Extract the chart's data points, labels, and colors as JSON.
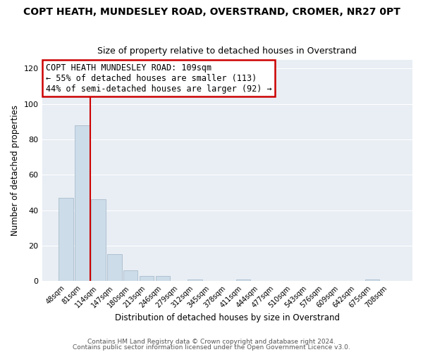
{
  "title": "COPT HEATH, MUNDESLEY ROAD, OVERSTRAND, CROMER, NR27 0PT",
  "subtitle": "Size of property relative to detached houses in Overstrand",
  "xlabel": "Distribution of detached houses by size in Overstrand",
  "ylabel": "Number of detached properties",
  "bin_labels": [
    "48sqm",
    "81sqm",
    "114sqm",
    "147sqm",
    "180sqm",
    "213sqm",
    "246sqm",
    "279sqm",
    "312sqm",
    "345sqm",
    "378sqm",
    "411sqm",
    "444sqm",
    "477sqm",
    "510sqm",
    "543sqm",
    "576sqm",
    "609sqm",
    "642sqm",
    "675sqm",
    "708sqm"
  ],
  "bar_values": [
    47,
    88,
    46,
    15,
    6,
    3,
    3,
    0,
    1,
    0,
    0,
    1,
    0,
    0,
    0,
    0,
    0,
    0,
    0,
    1,
    0
  ],
  "bar_color": "#ccdce8",
  "bar_edgecolor": "#aabccc",
  "ylim": [
    0,
    125
  ],
  "yticks": [
    0,
    20,
    40,
    60,
    80,
    100,
    120
  ],
  "vline_color": "#cc0000",
  "annotation_title": "COPT HEATH MUNDESLEY ROAD: 109sqm",
  "annotation_line1": "← 55% of detached houses are smaller (113)",
  "annotation_line2": "44% of semi-detached houses are larger (92) →",
  "annotation_box_color": "#cc0000",
  "footer1": "Contains HM Land Registry data © Crown copyright and database right 2024.",
  "footer2": "Contains public sector information licensed under the Open Government Licence v3.0.",
  "plot_bg_color": "#e8eef4",
  "fig_bg_color": "#ffffff",
  "grid_color": "#ffffff",
  "title_fontsize": 10,
  "subtitle_fontsize": 9,
  "annotation_fontsize": 8.5
}
